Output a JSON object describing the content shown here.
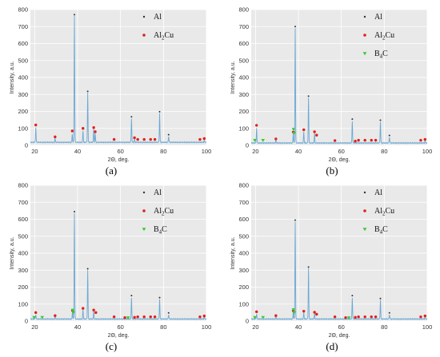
{
  "colors": {
    "trace": "#6aa9d4",
    "plot_bg": "#e9e9e9",
    "grid": "#ffffff",
    "al": "#333333",
    "al2cu": "#e0201b",
    "b4c": "#33cc33"
  },
  "legend_entries": {
    "al": {
      "text": "Al",
      "marker": "dot"
    },
    "al2cu": {
      "base": "Al",
      "sub": "2",
      "rest": "Cu",
      "marker": "dot"
    },
    "b4c": {
      "base": "B",
      "sub": "4",
      "rest": "C",
      "marker": "triangle"
    }
  },
  "chart_data": [
    {
      "type": "line",
      "panel_label": "(a)",
      "xlabel": "2Θ, deg.",
      "ylabel": "Intensity, a.u.",
      "xlim": [
        18,
        100
      ],
      "ylim": [
        0,
        800
      ],
      "xticks": [
        "20",
        "40",
        "60",
        "80",
        "100"
      ],
      "yticks": [
        "0",
        "100",
        "200",
        "300",
        "400",
        "500",
        "600",
        "700",
        "800"
      ],
      "grid": true,
      "legend": [
        "Al",
        "Al2Cu"
      ],
      "legend_position": "top-right",
      "baseline": 18,
      "peaks": [
        {
          "x": 20.5,
          "y": 108
        },
        {
          "x": 29.5,
          "y": 40
        },
        {
          "x": 37.5,
          "y": 65
        },
        {
          "x": 38.5,
          "y": 762
        },
        {
          "x": 42.5,
          "y": 85
        },
        {
          "x": 44.7,
          "y": 310
        },
        {
          "x": 47.5,
          "y": 95
        },
        {
          "x": 48.2,
          "y": 70
        },
        {
          "x": 65.1,
          "y": 160
        },
        {
          "x": 66.5,
          "y": 35
        },
        {
          "x": 78.2,
          "y": 190
        },
        {
          "x": 82.4,
          "y": 55
        },
        {
          "x": 99.0,
          "y": 30
        }
      ],
      "markers": {
        "al": [
          {
            "x": 38.5,
            "y": 770
          },
          {
            "x": 44.7,
            "y": 318
          },
          {
            "x": 65.1,
            "y": 168
          },
          {
            "x": 78.2,
            "y": 198
          },
          {
            "x": 82.4,
            "y": 63
          }
        ],
        "al2cu": [
          {
            "x": 20.5,
            "y": 120
          },
          {
            "x": 29.5,
            "y": 50
          },
          {
            "x": 37.5,
            "y": 85
          },
          {
            "x": 42.5,
            "y": 100
          },
          {
            "x": 47.5,
            "y": 105
          },
          {
            "x": 48.2,
            "y": 80
          },
          {
            "x": 57.0,
            "y": 35
          },
          {
            "x": 66.5,
            "y": 45
          },
          {
            "x": 68.0,
            "y": 35
          },
          {
            "x": 71.0,
            "y": 35
          },
          {
            "x": 74.0,
            "y": 35
          },
          {
            "x": 76.0,
            "y": 35
          },
          {
            "x": 97.0,
            "y": 35
          },
          {
            "x": 99.0,
            "y": 40
          }
        ],
        "b4c": []
      }
    },
    {
      "type": "line",
      "panel_label": "(b)",
      "xlabel": "2Θ, deg.",
      "ylabel": "Intensity, a.u.",
      "xlim": [
        18,
        100
      ],
      "ylim": [
        0,
        800
      ],
      "xticks": [
        "20",
        "40",
        "60",
        "80",
        "100"
      ],
      "yticks": [
        "0",
        "100",
        "200",
        "300",
        "400",
        "500",
        "600",
        "700",
        "800"
      ],
      "grid": true,
      "legend": [
        "Al",
        "Al2Cu",
        "B4C"
      ],
      "legend_position": "top-right",
      "baseline": 14,
      "peaks": [
        {
          "x": 20.5,
          "y": 105
        },
        {
          "x": 29.5,
          "y": 30
        },
        {
          "x": 37.6,
          "y": 70
        },
        {
          "x": 38.5,
          "y": 690
        },
        {
          "x": 42.5,
          "y": 80
        },
        {
          "x": 44.7,
          "y": 280
        },
        {
          "x": 47.5,
          "y": 70
        },
        {
          "x": 65.1,
          "y": 145
        },
        {
          "x": 78.2,
          "y": 140
        },
        {
          "x": 82.4,
          "y": 50
        },
        {
          "x": 99.0,
          "y": 25
        }
      ],
      "markers": {
        "al": [
          {
            "x": 38.5,
            "y": 700
          },
          {
            "x": 44.7,
            "y": 290
          },
          {
            "x": 65.1,
            "y": 155
          },
          {
            "x": 78.2,
            "y": 148
          },
          {
            "x": 82.4,
            "y": 58
          }
        ],
        "al2cu": [
          {
            "x": 20.5,
            "y": 118
          },
          {
            "x": 29.5,
            "y": 38
          },
          {
            "x": 37.6,
            "y": 78
          },
          {
            "x": 42.5,
            "y": 92
          },
          {
            "x": 47.5,
            "y": 80
          },
          {
            "x": 48.5,
            "y": 60
          },
          {
            "x": 57.0,
            "y": 28
          },
          {
            "x": 66.5,
            "y": 25
          },
          {
            "x": 68.0,
            "y": 30
          },
          {
            "x": 71.0,
            "y": 30
          },
          {
            "x": 74.0,
            "y": 30
          },
          {
            "x": 76.0,
            "y": 30
          },
          {
            "x": 97.0,
            "y": 30
          },
          {
            "x": 99.0,
            "y": 35
          }
        ],
        "b4c": [
          {
            "x": 19.7,
            "y": 30
          },
          {
            "x": 23.5,
            "y": 30
          },
          {
            "x": 37.7,
            "y": 95
          },
          {
            "x": 38.0,
            "y": 72
          }
        ]
      }
    },
    {
      "type": "line",
      "panel_label": "(c)",
      "xlabel": "2Θ, deg.",
      "ylabel": "Intensity, a.u.",
      "xlim": [
        18,
        100
      ],
      "ylim": [
        0,
        800
      ],
      "xticks": [
        "20",
        "40",
        "60",
        "80",
        "100"
      ],
      "yticks": [
        "0",
        "100",
        "200",
        "300",
        "400",
        "500",
        "600",
        "700",
        "800"
      ],
      "grid": true,
      "legend": [
        "Al",
        "Al2Cu",
        "B4C"
      ],
      "legend_position": "top-right",
      "baseline": 12,
      "peaks": [
        {
          "x": 20.5,
          "y": 40
        },
        {
          "x": 29.5,
          "y": 25
        },
        {
          "x": 37.6,
          "y": 55
        },
        {
          "x": 38.5,
          "y": 635
        },
        {
          "x": 42.5,
          "y": 65
        },
        {
          "x": 44.7,
          "y": 300
        },
        {
          "x": 47.5,
          "y": 60
        },
        {
          "x": 65.1,
          "y": 140
        },
        {
          "x": 78.2,
          "y": 130
        },
        {
          "x": 82.4,
          "y": 40
        },
        {
          "x": 99.0,
          "y": 25
        }
      ],
      "markers": {
        "al": [
          {
            "x": 38.5,
            "y": 645
          },
          {
            "x": 44.7,
            "y": 308
          },
          {
            "x": 65.1,
            "y": 150
          },
          {
            "x": 78.2,
            "y": 138
          },
          {
            "x": 82.4,
            "y": 48
          }
        ],
        "al2cu": [
          {
            "x": 20.5,
            "y": 50
          },
          {
            "x": 29.5,
            "y": 32
          },
          {
            "x": 37.6,
            "y": 62
          },
          {
            "x": 42.5,
            "y": 75
          },
          {
            "x": 47.5,
            "y": 65
          },
          {
            "x": 48.5,
            "y": 50
          },
          {
            "x": 57.0,
            "y": 25
          },
          {
            "x": 62.0,
            "y": 20
          },
          {
            "x": 66.5,
            "y": 22
          },
          {
            "x": 68.0,
            "y": 25
          },
          {
            "x": 71.0,
            "y": 25
          },
          {
            "x": 74.0,
            "y": 25
          },
          {
            "x": 76.0,
            "y": 25
          },
          {
            "x": 97.0,
            "y": 25
          },
          {
            "x": 99.0,
            "y": 30
          }
        ],
        "b4c": [
          {
            "x": 19.7,
            "y": 22
          },
          {
            "x": 23.5,
            "y": 22
          },
          {
            "x": 37.7,
            "y": 65
          },
          {
            "x": 38.0,
            "y": 50
          },
          {
            "x": 63.5,
            "y": 20
          }
        ]
      }
    },
    {
      "type": "line",
      "panel_label": "(d)",
      "xlabel": "2Θ, deg.",
      "ylabel": "Intensity, a.u.",
      "xlim": [
        18,
        100
      ],
      "ylim": [
        0,
        800
      ],
      "xticks": [
        "20",
        "40",
        "60",
        "80",
        "100"
      ],
      "yticks": [
        "0",
        "100",
        "200",
        "300",
        "400",
        "500",
        "600",
        "700",
        "800"
      ],
      "grid": true,
      "legend": [
        "Al",
        "Al2Cu",
        "B4C"
      ],
      "legend_position": "top-right",
      "baseline": 12,
      "peaks": [
        {
          "x": 20.5,
          "y": 45
        },
        {
          "x": 29.5,
          "y": 25
        },
        {
          "x": 37.6,
          "y": 55
        },
        {
          "x": 38.5,
          "y": 585
        },
        {
          "x": 42.5,
          "y": 50
        },
        {
          "x": 44.7,
          "y": 310
        },
        {
          "x": 47.5,
          "y": 45
        },
        {
          "x": 65.1,
          "y": 140
        },
        {
          "x": 78.2,
          "y": 125
        },
        {
          "x": 82.4,
          "y": 40
        },
        {
          "x": 99.0,
          "y": 25
        }
      ],
      "markers": {
        "al": [
          {
            "x": 38.5,
            "y": 595
          },
          {
            "x": 44.7,
            "y": 318
          },
          {
            "x": 65.1,
            "y": 150
          },
          {
            "x": 78.2,
            "y": 133
          },
          {
            "x": 82.4,
            "y": 48
          }
        ],
        "al2cu": [
          {
            "x": 20.5,
            "y": 55
          },
          {
            "x": 29.5,
            "y": 32
          },
          {
            "x": 37.6,
            "y": 60
          },
          {
            "x": 42.5,
            "y": 58
          },
          {
            "x": 47.5,
            "y": 52
          },
          {
            "x": 48.5,
            "y": 40
          },
          {
            "x": 57.0,
            "y": 25
          },
          {
            "x": 62.0,
            "y": 20
          },
          {
            "x": 66.5,
            "y": 22
          },
          {
            "x": 68.0,
            "y": 25
          },
          {
            "x": 71.0,
            "y": 25
          },
          {
            "x": 74.0,
            "y": 25
          },
          {
            "x": 76.0,
            "y": 25
          },
          {
            "x": 97.0,
            "y": 25
          },
          {
            "x": 99.0,
            "y": 30
          }
        ],
        "b4c": [
          {
            "x": 19.7,
            "y": 22
          },
          {
            "x": 23.5,
            "y": 22
          },
          {
            "x": 37.7,
            "y": 68
          },
          {
            "x": 38.0,
            "y": 50
          },
          {
            "x": 63.5,
            "y": 20
          }
        ]
      }
    }
  ]
}
